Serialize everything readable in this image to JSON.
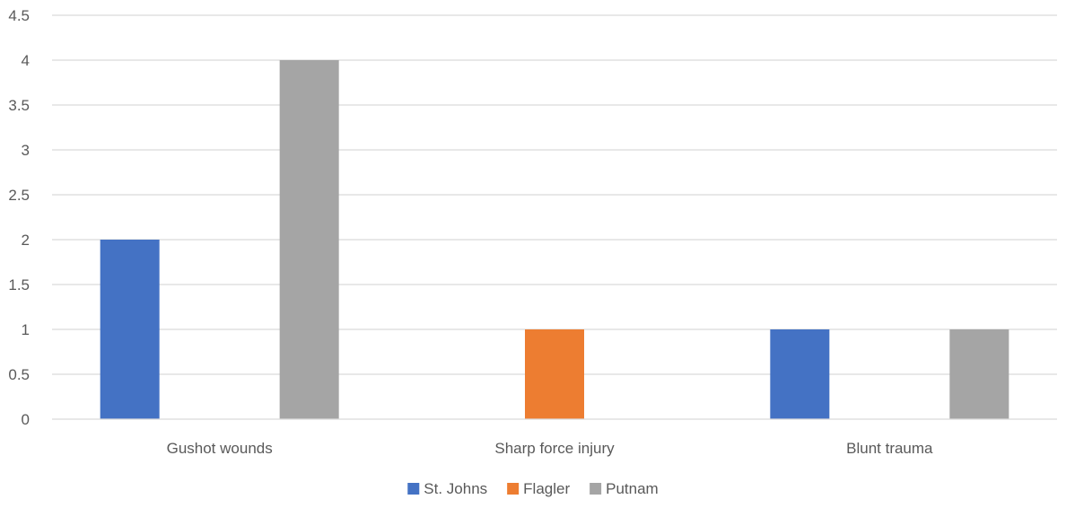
{
  "chart_data": {
    "type": "bar",
    "categories": [
      "Gushot wounds",
      "Sharp force injury",
      "Blunt trauma"
    ],
    "series": [
      {
        "name": "St. Johns",
        "color": "#4472C4",
        "values": [
          2,
          0,
          1
        ]
      },
      {
        "name": "Flagler",
        "color": "#ED7D31",
        "values": [
          0,
          1,
          0
        ]
      },
      {
        "name": "Putnam",
        "color": "#A5A5A5",
        "values": [
          4,
          0,
          1
        ]
      }
    ],
    "ylim": [
      0,
      4.5
    ],
    "y_ticks": [
      "0",
      "0.5",
      "1",
      "1.5",
      "2",
      "2.5",
      "3",
      "3.5",
      "4",
      "4.5"
    ],
    "title": "",
    "xlabel": "",
    "ylabel": "",
    "grid": true,
    "legend_position": "bottom"
  }
}
